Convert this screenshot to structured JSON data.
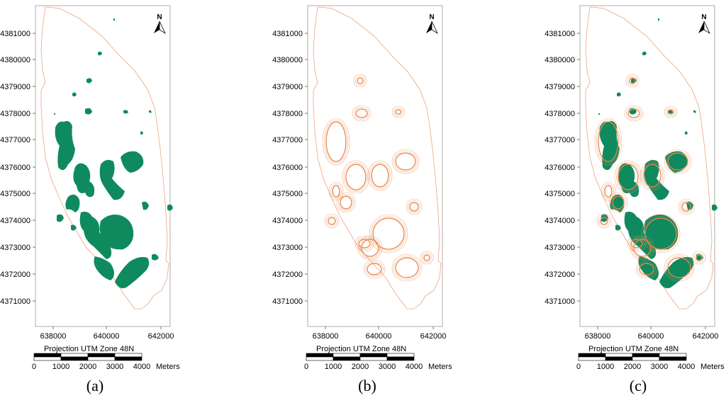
{
  "colors": {
    "cluster_fill": "#0f8a5f",
    "contour": "#e8874a",
    "boundary": "#f0a080",
    "frame": "#999999"
  },
  "panels": [
    {
      "label": "(a)",
      "label_letter": "a",
      "content": "filled-clusters",
      "north_label": "N",
      "projection": "Projection UTM Zone 48N",
      "y_ticks": [
        "4381000",
        "4380000",
        "4379000",
        "4378000",
        "4377000",
        "4376000",
        "4375000",
        "4374000",
        "4373000",
        "4372000",
        "4371000"
      ],
      "x_ticks": [
        "638000",
        "640000",
        "642000"
      ],
      "scale_ticks": [
        "0",
        "1000",
        "2000",
        "3000",
        "4000"
      ],
      "scale_unit": "Meters"
    },
    {
      "label": "(b)",
      "label_letter": "b",
      "content": "contour-lines",
      "north_label": "N",
      "projection": "Projection UTM Zone 48N",
      "y_ticks": [
        "4381000",
        "4380000",
        "4379000",
        "4378000",
        "4377000",
        "4376000",
        "4375000",
        "4374000",
        "4373000",
        "4372000",
        "4371000"
      ],
      "x_ticks": [
        "638000",
        "640000",
        "642000"
      ],
      "scale_ticks": [
        "0",
        "1000",
        "2000",
        "3000",
        "4000"
      ],
      "scale_unit": "Meters"
    },
    {
      "label": "(c)",
      "label_letter": "c",
      "content": "clusters-with-contours",
      "north_label": "N",
      "projection": "Projection UTM Zone 48N",
      "y_ticks": [
        "4381000",
        "4380000",
        "4379000",
        "4378000",
        "4377000",
        "4376000",
        "4375000",
        "4374000",
        "4373000",
        "4372000",
        "4371000"
      ],
      "x_ticks": [
        "638000",
        "640000",
        "642000"
      ],
      "scale_ticks": [
        "0",
        "1000",
        "2000",
        "3000",
        "4000"
      ],
      "scale_unit": "Meters"
    }
  ]
}
